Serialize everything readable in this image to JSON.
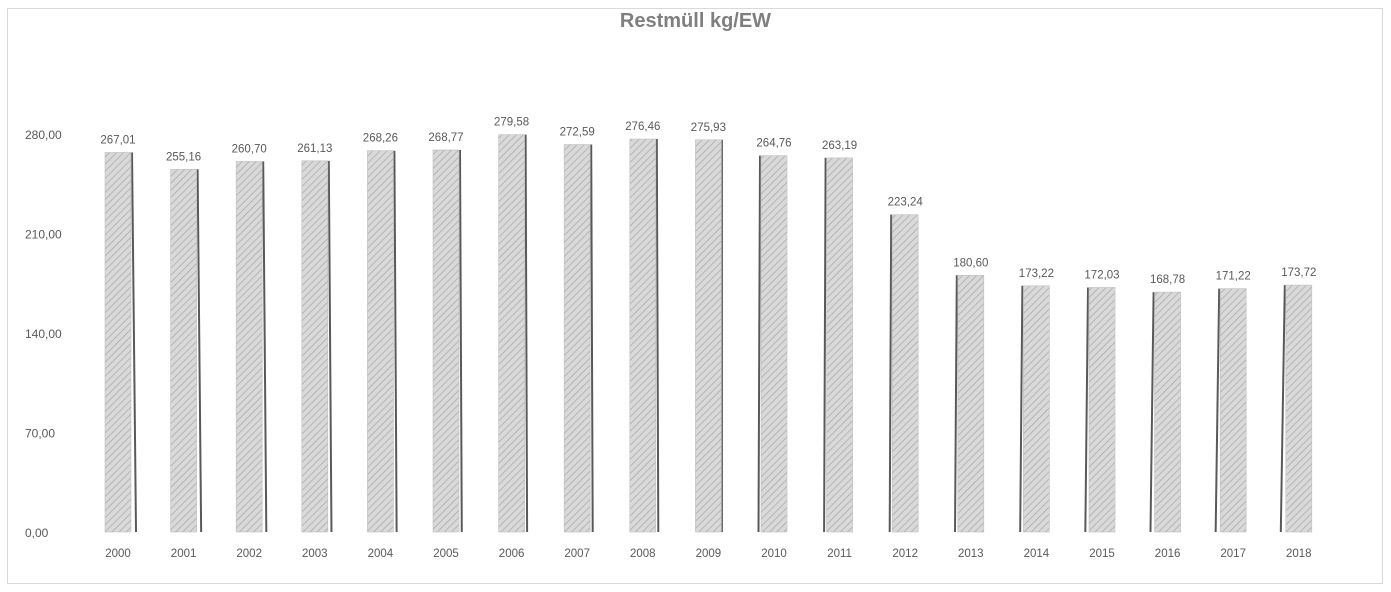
{
  "chart_data": {
    "type": "bar",
    "title": "Restmüll kg/EW",
    "xlabel": "",
    "ylabel": "",
    "categories": [
      "2000",
      "2001",
      "2002",
      "2003",
      "2004",
      "2005",
      "2006",
      "2007",
      "2008",
      "2009",
      "2010",
      "2011",
      "2012",
      "2013",
      "2014",
      "2015",
      "2016",
      "2017",
      "2018"
    ],
    "values": [
      267.01,
      255.16,
      260.7,
      261.13,
      268.26,
      268.77,
      279.58,
      272.59,
      276.46,
      275.93,
      264.76,
      263.19,
      223.24,
      180.6,
      173.22,
      172.03,
      168.78,
      171.22,
      173.72
    ],
    "value_labels": [
      "267,01",
      "255,16",
      "260,70",
      "261,13",
      "268,26",
      "268,77",
      "279,58",
      "272,59",
      "276,46",
      "275,93",
      "264,76",
      "263,19",
      "223,24",
      "180,60",
      "173,22",
      "172,03",
      "168,78",
      "171,22",
      "173,72"
    ],
    "yticks": [
      0,
      70,
      140,
      210,
      280
    ],
    "ytick_labels": [
      "0,00",
      "70,00",
      "140,00",
      "210,00",
      "280,00"
    ],
    "ylim": [
      0,
      280
    ],
    "grid": false,
    "legend": "none",
    "bar_fill": "#d9d9d9",
    "bar_hatch": "#a6a6a6",
    "bar_side": "#595959",
    "text_color": "#595959"
  }
}
